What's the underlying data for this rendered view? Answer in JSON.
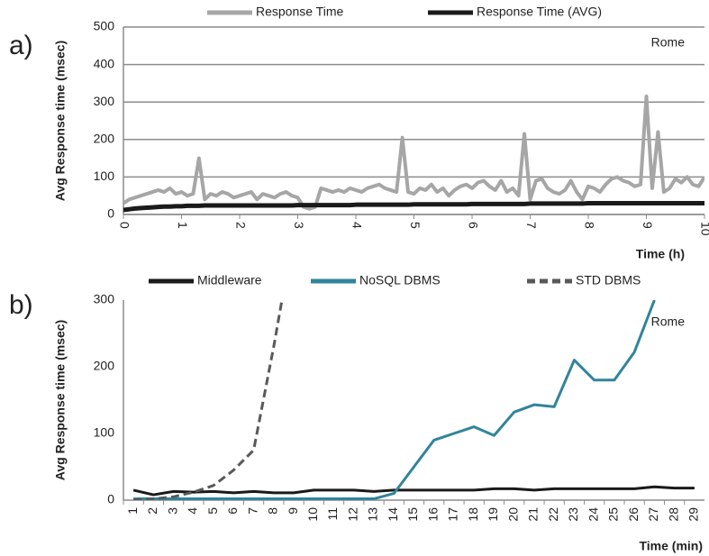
{
  "chart_data": [
    {
      "type": "line",
      "panel_label": "a)",
      "annotation": "Rome",
      "x_label": "Time (h)",
      "y_label": "Avg Response time (msec)",
      "x": [
        0,
        0.1,
        0.2,
        0.3,
        0.4,
        0.5,
        0.6,
        0.7,
        0.8,
        0.9,
        1,
        1.1,
        1.2,
        1.3,
        1.4,
        1.5,
        1.6,
        1.7,
        1.8,
        1.9,
        2,
        2.1,
        2.2,
        2.3,
        2.4,
        2.5,
        2.6,
        2.7,
        2.8,
        2.9,
        3,
        3.1,
        3.2,
        3.3,
        3.4,
        3.5,
        3.6,
        3.7,
        3.8,
        3.9,
        4,
        4.1,
        4.2,
        4.3,
        4.4,
        4.5,
        4.6,
        4.7,
        4.8,
        4.9,
        5,
        5.1,
        5.2,
        5.3,
        5.4,
        5.5,
        5.6,
        5.7,
        5.8,
        5.9,
        6,
        6.1,
        6.2,
        6.3,
        6.4,
        6.5,
        6.6,
        6.7,
        6.8,
        6.9,
        7,
        7.1,
        7.2,
        7.3,
        7.4,
        7.5,
        7.6,
        7.7,
        7.8,
        7.9,
        8,
        8.1,
        8.2,
        8.3,
        8.4,
        8.5,
        8.6,
        8.7,
        8.8,
        8.9,
        9,
        9.1,
        9.2,
        9.3,
        9.4,
        9.5,
        9.6,
        9.7,
        9.8,
        9.9,
        10
      ],
      "series": [
        {
          "name": "Response Time",
          "color": "#a6a6a6",
          "values": [
            30,
            40,
            45,
            50,
            55,
            60,
            65,
            60,
            70,
            55,
            60,
            50,
            55,
            150,
            40,
            55,
            50,
            60,
            55,
            45,
            50,
            55,
            60,
            40,
            55,
            50,
            45,
            55,
            60,
            50,
            45,
            20,
            15,
            20,
            70,
            65,
            60,
            65,
            60,
            70,
            65,
            60,
            70,
            75,
            80,
            70,
            65,
            60,
            205,
            60,
            55,
            70,
            65,
            80,
            60,
            70,
            50,
            65,
            75,
            80,
            70,
            85,
            90,
            75,
            65,
            90,
            60,
            70,
            50,
            215,
            40,
            90,
            95,
            70,
            60,
            55,
            65,
            90,
            60,
            40,
            75,
            70,
            60,
            80,
            95,
            100,
            90,
            85,
            75,
            80,
            315,
            70,
            220,
            60,
            70,
            95,
            85,
            100,
            80,
            75,
            100
          ]
        },
        {
          "name": "Response Time (AVG)",
          "color": "#1a1a1a",
          "values": [
            12,
            14,
            16,
            17,
            18,
            19,
            20,
            21,
            21,
            22,
            22,
            23,
            23,
            23,
            24,
            24,
            24,
            24,
            24,
            24,
            24,
            24,
            24,
            24,
            24,
            24,
            24,
            24,
            24,
            24,
            25,
            25,
            25,
            25,
            25,
            25,
            25,
            25,
            25,
            25,
            26,
            26,
            26,
            26,
            26,
            26,
            26,
            26,
            26,
            26,
            27,
            27,
            27,
            27,
            27,
            27,
            27,
            27,
            27,
            27,
            28,
            28,
            28,
            28,
            28,
            28,
            28,
            28,
            28,
            28,
            29,
            29,
            29,
            29,
            29,
            29,
            29,
            29,
            29,
            29,
            30,
            30,
            30,
            30,
            30,
            30,
            30,
            30,
            30,
            30,
            30,
            30,
            30,
            30,
            30,
            30,
            30,
            30,
            30,
            30,
            30
          ]
        }
      ],
      "xlim": [
        0,
        10
      ],
      "xticks": [
        0,
        1,
        2,
        3,
        4,
        5,
        6,
        7,
        8,
        9,
        10
      ],
      "ylim": [
        0,
        500
      ],
      "yticks": [
        0,
        100,
        200,
        300,
        400,
        500
      ],
      "grid": true
    },
    {
      "type": "line",
      "panel_label": "b)",
      "annotation": "Rome",
      "x_label": "Time  (min)",
      "y_label": "Avg Response time (msec)",
      "categories": [
        "1",
        "2",
        "3",
        "4",
        "5",
        "6",
        "7",
        "8",
        "9",
        "10",
        "11",
        "12",
        "13",
        "14",
        "15",
        "16",
        "17",
        "18",
        "19",
        "20",
        "21",
        "22",
        "23",
        "24",
        "25",
        "26",
        "27",
        "28",
        "29"
      ],
      "series": [
        {
          "name": "Middleware",
          "color": "#1a1a1a",
          "values": [
            15,
            8,
            13,
            12,
            13,
            11,
            13,
            11,
            11,
            15,
            15,
            15,
            13,
            15,
            15,
            15,
            15,
            15,
            17,
            17,
            15,
            17,
            17,
            17,
            17,
            17,
            20,
            18,
            18
          ]
        },
        {
          "name": "NoSQL DBMS",
          "color": "#31849b",
          "values": [
            2,
            2,
            2,
            2,
            2,
            2,
            2,
            2,
            2,
            2,
            2,
            2,
            2,
            10,
            50,
            90,
            100,
            110,
            97,
            132,
            143,
            140,
            210,
            180,
            180,
            222,
            300,
            null,
            null
          ]
        },
        {
          "name": "STD DBMS",
          "color": "#595959",
          "dashed": true,
          "values": [
            0,
            2,
            5,
            12,
            22,
            45,
            75,
            230,
            400,
            null,
            null,
            null,
            null,
            null,
            null,
            null,
            null,
            null,
            null,
            null,
            null,
            null,
            null,
            null,
            null,
            null,
            null,
            null,
            null
          ]
        }
      ],
      "ylim": [
        0,
        300
      ],
      "yticks": [
        0,
        100,
        200,
        300
      ],
      "grid": false
    }
  ]
}
